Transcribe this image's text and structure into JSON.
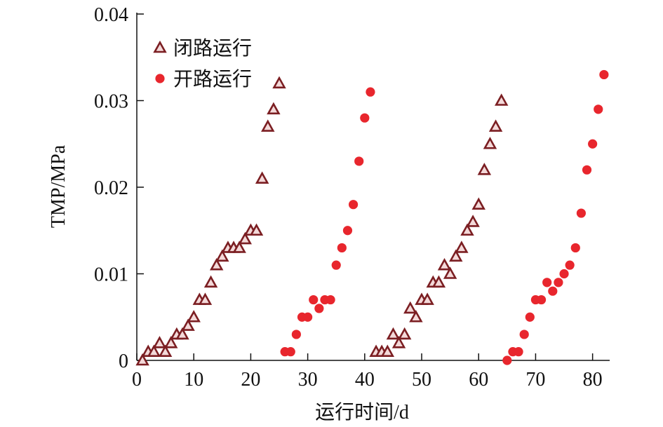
{
  "chart_data": {
    "type": "scatter",
    "xlabel": "运行时间/d",
    "ylabel": "TMP/MPa",
    "xlim": [
      0,
      83
    ],
    "ylim": [
      0,
      0.04
    ],
    "xticks": [
      0,
      10,
      20,
      30,
      40,
      50,
      60,
      70,
      80
    ],
    "xtick_labels": [
      "0",
      "10",
      "20",
      "30",
      "40",
      "50",
      "60",
      "70",
      "80"
    ],
    "yticks": [
      0,
      0.01,
      0.02,
      0.03,
      0.04
    ],
    "ytick_labels": [
      "0",
      "0.01",
      "0.02",
      "0.03",
      "0.04"
    ],
    "grid": false,
    "legend": "top-left",
    "series": [
      {
        "name": "闭路运行",
        "marker": "triangle",
        "color": "#7b1e22",
        "fill": "#f3d9d9",
        "points": [
          [
            1,
            0
          ],
          [
            2,
            0.001
          ],
          [
            3,
            0.001
          ],
          [
            4,
            0.002
          ],
          [
            5,
            0.001
          ],
          [
            6,
            0.002
          ],
          [
            7,
            0.003
          ],
          [
            8,
            0.003
          ],
          [
            9,
            0.004
          ],
          [
            10,
            0.005
          ],
          [
            11,
            0.007
          ],
          [
            12,
            0.007
          ],
          [
            13,
            0.009
          ],
          [
            14,
            0.011
          ],
          [
            15,
            0.012
          ],
          [
            16,
            0.013
          ],
          [
            17,
            0.013
          ],
          [
            18,
            0.013
          ],
          [
            19,
            0.014
          ],
          [
            20,
            0.015
          ],
          [
            21,
            0.015
          ],
          [
            22,
            0.021
          ],
          [
            23,
            0.027
          ],
          [
            24,
            0.029
          ],
          [
            25,
            0.032
          ],
          [
            42,
            0.001
          ],
          [
            43,
            0.001
          ],
          [
            44,
            0.001
          ],
          [
            45,
            0.003
          ],
          [
            46,
            0.002
          ],
          [
            47,
            0.003
          ],
          [
            48,
            0.006
          ],
          [
            49,
            0.005
          ],
          [
            50,
            0.007
          ],
          [
            51,
            0.007
          ],
          [
            52,
            0.009
          ],
          [
            53,
            0.009
          ],
          [
            54,
            0.011
          ],
          [
            55,
            0.01
          ],
          [
            56,
            0.012
          ],
          [
            57,
            0.013
          ],
          [
            58,
            0.015
          ],
          [
            59,
            0.016
          ],
          [
            60,
            0.018
          ],
          [
            61,
            0.022
          ],
          [
            62,
            0.025
          ],
          [
            63,
            0.027
          ],
          [
            64,
            0.03
          ]
        ]
      },
      {
        "name": "开路运行",
        "marker": "circle",
        "color": "#e8262d",
        "points": [
          [
            26,
            0.001
          ],
          [
            27,
            0.001
          ],
          [
            28,
            0.003
          ],
          [
            29,
            0.005
          ],
          [
            30,
            0.005
          ],
          [
            31,
            0.007
          ],
          [
            32,
            0.006
          ],
          [
            33,
            0.007
          ],
          [
            34,
            0.007
          ],
          [
            35,
            0.011
          ],
          [
            36,
            0.013
          ],
          [
            37,
            0.015
          ],
          [
            38,
            0.018
          ],
          [
            39,
            0.023
          ],
          [
            40,
            0.028
          ],
          [
            41,
            0.031
          ],
          [
            65,
            0
          ],
          [
            66,
            0.001
          ],
          [
            67,
            0.001
          ],
          [
            68,
            0.003
          ],
          [
            69,
            0.005
          ],
          [
            70,
            0.007
          ],
          [
            71,
            0.007
          ],
          [
            72,
            0.009
          ],
          [
            73,
            0.008
          ],
          [
            74,
            0.009
          ],
          [
            75,
            0.01
          ],
          [
            76,
            0.011
          ],
          [
            77,
            0.013
          ],
          [
            78,
            0.017
          ],
          [
            79,
            0.022
          ],
          [
            80,
            0.025
          ],
          [
            81,
            0.029
          ],
          [
            82,
            0.033
          ]
        ]
      }
    ]
  }
}
